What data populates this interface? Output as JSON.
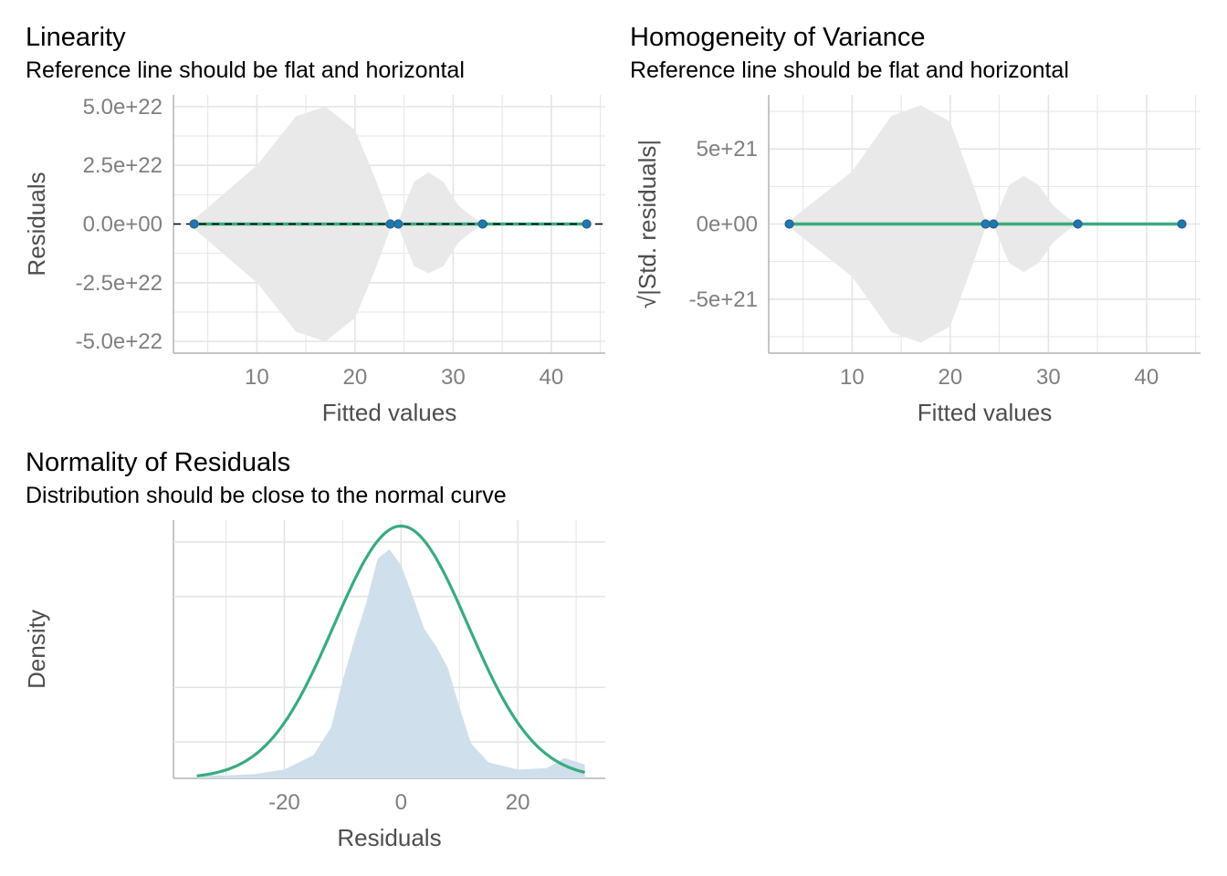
{
  "panels": {
    "linearity": {
      "title": "Linearity",
      "subtitle": "Reference line should be flat and horizontal"
    },
    "homogeneity": {
      "title": "Homogeneity of Variance",
      "subtitle": "Reference line should be flat and horizontal"
    },
    "normality": {
      "title": "Normality of Residuals",
      "subtitle": "Distribution should be close to the normal curve"
    }
  },
  "colors": {
    "point": "#1f78b4",
    "point_edge": "#2a5f8a",
    "fit_line": "#3aaa7f",
    "band": "#e9e9e9",
    "density_fill": "#cfdfec",
    "grid": "#e4e4e4",
    "reference": "#000000"
  },
  "chart_data": [
    {
      "type": "scatter",
      "title": "Linearity",
      "subtitle": "Reference line should be flat and horizontal",
      "xlabel": "Fitted values",
      "ylabel": "Residuals",
      "xlim": [
        1.5,
        45.5
      ],
      "ylim": [
        -5.5e+22,
        5.5e+22
      ],
      "x_ticks": [
        10,
        20,
        30,
        40
      ],
      "x_tick_labels": [
        "10",
        "20",
        "30",
        "40"
      ],
      "y_ticks": [
        5e+22,
        2.5e+22,
        0,
        -2.5e+22,
        -5e+22
      ],
      "y_tick_labels": [
        "5.0e+22",
        "2.5e+22",
        "0.0e+00",
        "-2.5e+22",
        "-5.0e+22"
      ],
      "points": {
        "x": [
          3.6,
          23.6,
          24.4,
          33.0,
          43.6
        ],
        "y": [
          0,
          0,
          0,
          0,
          0
        ]
      },
      "smooth_line": {
        "x": [
          3.6,
          43.6
        ],
        "y": [
          0,
          0
        ]
      },
      "reference_line": {
        "y": 0,
        "style": "dashed"
      },
      "confidence_band": [
        {
          "x": [
            3.6,
            10,
            14,
            17,
            20,
            22,
            23.6
          ],
          "upper": [
            2e+21,
            2.5e+22,
            4.6e+22,
            5e+22,
            4e+22,
            2e+22,
            2e+21
          ],
          "lower": [
            -2e+21,
            -2.5e+22,
            -4.6e+22,
            -5e+22,
            -4e+22,
            -2e+22,
            -2e+21
          ]
        },
        {
          "x": [
            24.4,
            26,
            27.5,
            29,
            30.5,
            32,
            33.0
          ],
          "upper": [
            1e+21,
            1.8e+22,
            2.2e+22,
            1.8e+22,
            8e+21,
            3e+21,
            5e+20
          ],
          "lower": [
            -1e+21,
            -1.8e+22,
            -2.1e+22,
            -1.8e+22,
            -8e+21,
            -3e+21,
            -5e+20
          ]
        }
      ],
      "grid": true
    },
    {
      "type": "scatter",
      "title": "Homogeneity of Variance",
      "subtitle": "Reference line should be flat and horizontal",
      "xlabel": "Fitted values",
      "ylabel": "|Std. residuals|",
      "ylabel_prefix": "√",
      "xlim": [
        1.5,
        45.5
      ],
      "ylim": [
        -8.6e+21,
        8.6e+21
      ],
      "x_ticks": [
        10,
        20,
        30,
        40
      ],
      "x_tick_labels": [
        "10",
        "20",
        "30",
        "40"
      ],
      "y_ticks": [
        5e+21,
        0,
        -5e+21
      ],
      "y_tick_labels": [
        "5e+21",
        "0e+00",
        "-5e+21"
      ],
      "points": {
        "x": [
          3.6,
          23.6,
          24.4,
          33.0,
          43.6
        ],
        "y": [
          0,
          0,
          0,
          0,
          0
        ]
      },
      "smooth_line": {
        "x": [
          3.6,
          43.6
        ],
        "y": [
          0,
          0
        ]
      },
      "confidence_band": [
        {
          "x": [
            3.6,
            10,
            14,
            17,
            20,
            22,
            23.6
          ],
          "upper": [
            2e+20,
            3.5e+21,
            7.2e+21,
            7.9e+21,
            6.8e+21,
            3.2e+21,
            2e+20
          ],
          "lower": [
            -2e+20,
            -3.5e+21,
            -7.2e+21,
            -7.9e+21,
            -6.8e+21,
            -3.2e+21,
            -2e+20
          ]
        },
        {
          "x": [
            24.4,
            26,
            27.5,
            29,
            30.5,
            32,
            33.0
          ],
          "upper": [
            1e+20,
            2.6e+21,
            3.2e+21,
            2.6e+21,
            1.2e+21,
            4e+20,
            5e+19
          ],
          "lower": [
            -1e+20,
            -2.6e+21,
            -3.2e+21,
            -2.6e+21,
            -1.2e+21,
            -4e+20,
            -5e+19
          ]
        }
      ],
      "grid": true
    },
    {
      "type": "area",
      "title": "Normality of Residuals",
      "subtitle": "Distribution should be close to the normal curve",
      "xlabel": "Residuals",
      "ylabel": "Density",
      "xlim": [
        -39,
        35
      ],
      "ylim": [
        0,
        0.0355
      ],
      "x_ticks": [
        -20,
        0,
        20
      ],
      "x_tick_labels": [
        "-20",
        "0",
        "20"
      ],
      "y_tick_labels": [],
      "y_gridlines": [
        0.005,
        0.0125,
        0.025,
        0.0325
      ],
      "density": {
        "x": [
          -35,
          -30,
          -25,
          -20,
          -15,
          -12,
          -10,
          -8,
          -6,
          -4,
          -2,
          0,
          2,
          4,
          6,
          8,
          10,
          12,
          15,
          20,
          25,
          28,
          30,
          31.5
        ],
        "y": [
          0.0004,
          0.0004,
          0.0006,
          0.0012,
          0.0032,
          0.007,
          0.0135,
          0.019,
          0.024,
          0.0302,
          0.0315,
          0.0293,
          0.025,
          0.0205,
          0.0182,
          0.0152,
          0.0098,
          0.0048,
          0.0022,
          0.0012,
          0.0014,
          0.0028,
          0.0023,
          0.0019
        ]
      },
      "normal_curve": {
        "mean": 0,
        "sd": 11.5
      },
      "grid": true
    }
  ]
}
